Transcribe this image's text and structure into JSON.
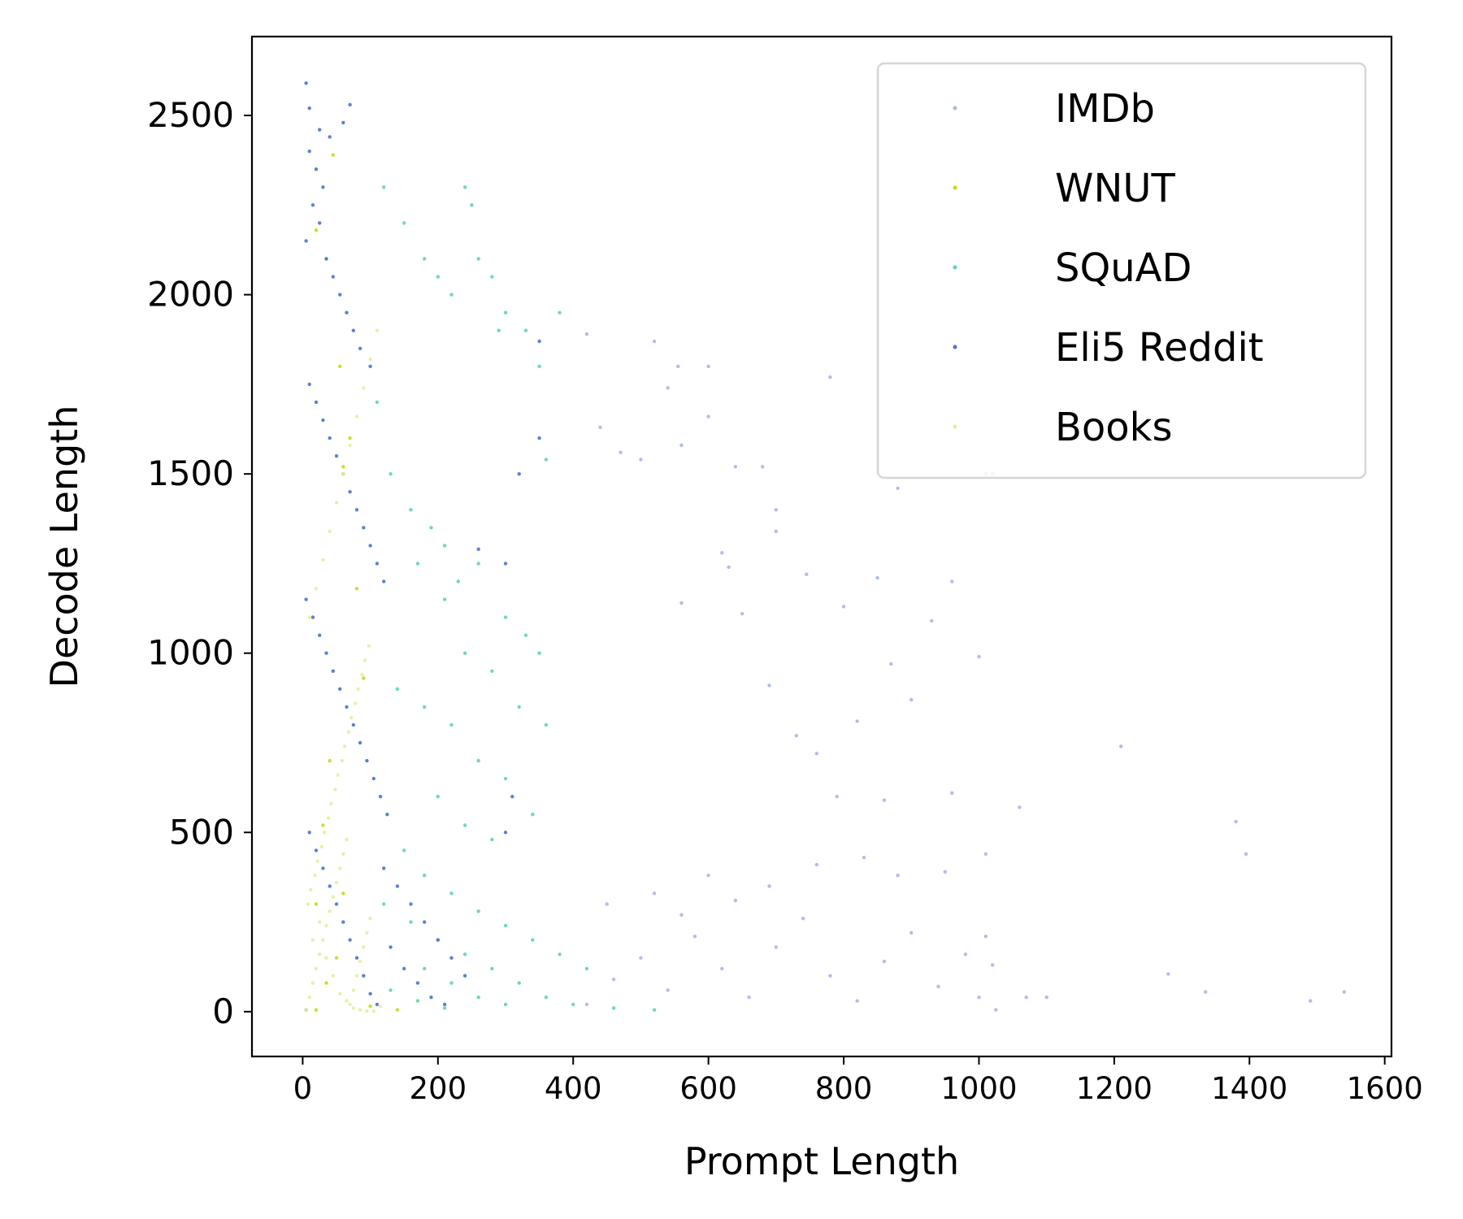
{
  "chart_data": {
    "type": "scatter",
    "title": "",
    "xlabel": "Prompt Length",
    "ylabel": "Decode Length",
    "xlim": [
      -75,
      1610
    ],
    "ylim": [
      -125,
      2720
    ],
    "xticks": [
      0,
      200,
      400,
      600,
      800,
      1000,
      1200,
      1400,
      1600
    ],
    "yticks": [
      0,
      500,
      1000,
      1500,
      2000,
      2500
    ],
    "grid": false,
    "legend": {
      "placement": "top-right"
    },
    "series": [
      {
        "name": "IMDb",
        "color": "#a9b6e6",
        "points": [
          [
            420,
            20
          ],
          [
            460,
            90
          ],
          [
            500,
            150
          ],
          [
            540,
            60
          ],
          [
            580,
            210
          ],
          [
            620,
            120
          ],
          [
            660,
            40
          ],
          [
            700,
            180
          ],
          [
            740,
            260
          ],
          [
            780,
            100
          ],
          [
            820,
            30
          ],
          [
            860,
            140
          ],
          [
            900,
            220
          ],
          [
            940,
            70
          ],
          [
            980,
            160
          ],
          [
            1000,
            40
          ],
          [
            1010,
            210
          ],
          [
            1020,
            130
          ],
          [
            1025,
            5
          ],
          [
            450,
            300
          ],
          [
            520,
            330
          ],
          [
            560,
            270
          ],
          [
            600,
            380
          ],
          [
            640,
            310
          ],
          [
            690,
            350
          ],
          [
            760,
            410
          ],
          [
            830,
            430
          ],
          [
            880,
            380
          ],
          [
            950,
            390
          ],
          [
            1010,
            440
          ],
          [
            1070,
            40
          ],
          [
            1100,
            40
          ],
          [
            1210,
            740
          ],
          [
            1280,
            105
          ],
          [
            1335,
            55
          ],
          [
            1380,
            530
          ],
          [
            1395,
            440
          ],
          [
            1490,
            30
          ],
          [
            1540,
            55
          ],
          [
            420,
            1890
          ],
          [
            440,
            1630
          ],
          [
            470,
            1560
          ],
          [
            500,
            1540
          ],
          [
            520,
            1870
          ],
          [
            555,
            1800
          ],
          [
            600,
            1800
          ],
          [
            640,
            1520
          ],
          [
            680,
            1520
          ],
          [
            700,
            1400
          ],
          [
            745,
            1220
          ],
          [
            780,
            1770
          ],
          [
            850,
            1210
          ],
          [
            870,
            970
          ],
          [
            930,
            1090
          ],
          [
            960,
            1200
          ],
          [
            1010,
            1500
          ],
          [
            1020,
            1500
          ],
          [
            560,
            1140
          ],
          [
            620,
            1280
          ],
          [
            650,
            1110
          ],
          [
            690,
            910
          ],
          [
            730,
            770
          ],
          [
            760,
            720
          ],
          [
            790,
            600
          ],
          [
            860,
            590
          ],
          [
            960,
            610
          ],
          [
            1060,
            570
          ],
          [
            540,
            1740
          ],
          [
            600,
            1660
          ],
          [
            700,
            1340
          ],
          [
            800,
            1130
          ],
          [
            880,
            1460
          ],
          [
            900,
            870
          ],
          [
            820,
            810
          ],
          [
            1000,
            990
          ],
          [
            560,
            1580
          ],
          [
            630,
            1240
          ]
        ]
      },
      {
        "name": "WNUT",
        "color": "#b0e41c",
        "points": [
          [
            20,
            2180
          ],
          [
            35,
            2100
          ],
          [
            45,
            2390
          ],
          [
            55,
            1800
          ],
          [
            60,
            1520
          ],
          [
            70,
            1600
          ],
          [
            80,
            1180
          ],
          [
            90,
            930
          ],
          [
            40,
            700
          ],
          [
            30,
            520
          ],
          [
            60,
            330
          ],
          [
            50,
            150
          ],
          [
            35,
            80
          ],
          [
            20,
            5
          ],
          [
            100,
            15
          ],
          [
            140,
            5
          ],
          [
            20,
            300
          ]
        ]
      },
      {
        "name": "SQuAD",
        "color": "#5ed6a6",
        "points": [
          [
            120,
            2300
          ],
          [
            150,
            2200
          ],
          [
            180,
            2100
          ],
          [
            200,
            2050
          ],
          [
            220,
            2000
          ],
          [
            240,
            2300
          ],
          [
            250,
            2250
          ],
          [
            260,
            2100
          ],
          [
            280,
            2050
          ],
          [
            290,
            1900
          ],
          [
            300,
            1950
          ],
          [
            330,
            1900
          ],
          [
            350,
            1800
          ],
          [
            360,
            1540
          ],
          [
            380,
            1950
          ],
          [
            110,
            1700
          ],
          [
            130,
            1500
          ],
          [
            160,
            1400
          ],
          [
            190,
            1350
          ],
          [
            210,
            1300
          ],
          [
            230,
            1200
          ],
          [
            260,
            1250
          ],
          [
            300,
            1100
          ],
          [
            330,
            1050
          ],
          [
            350,
            1000
          ],
          [
            170,
            1250
          ],
          [
            210,
            1150
          ],
          [
            240,
            1000
          ],
          [
            280,
            950
          ],
          [
            320,
            850
          ],
          [
            360,
            800
          ],
          [
            140,
            900
          ],
          [
            180,
            850
          ],
          [
            220,
            800
          ],
          [
            260,
            700
          ],
          [
            300,
            650
          ],
          [
            340,
            550
          ],
          [
            200,
            600
          ],
          [
            240,
            520
          ],
          [
            280,
            480
          ],
          [
            150,
            450
          ],
          [
            180,
            380
          ],
          [
            220,
            330
          ],
          [
            260,
            280
          ],
          [
            300,
            240
          ],
          [
            340,
            200
          ],
          [
            380,
            160
          ],
          [
            420,
            120
          ],
          [
            120,
            300
          ],
          [
            160,
            250
          ],
          [
            200,
            200
          ],
          [
            240,
            160
          ],
          [
            280,
            120
          ],
          [
            320,
            80
          ],
          [
            360,
            40
          ],
          [
            400,
            20
          ],
          [
            460,
            10
          ],
          [
            520,
            5
          ],
          [
            180,
            120
          ],
          [
            220,
            80
          ],
          [
            260,
            40
          ],
          [
            300,
            20
          ],
          [
            130,
            60
          ],
          [
            170,
            30
          ],
          [
            210,
            10
          ]
        ]
      },
      {
        "name": "Eli5 Reddit",
        "color": "#4a72cf",
        "points": [
          [
            5,
            2590
          ],
          [
            10,
            2520
          ],
          [
            25,
            2460
          ],
          [
            40,
            2440
          ],
          [
            60,
            2480
          ],
          [
            70,
            2530
          ],
          [
            10,
            2400
          ],
          [
            20,
            2350
          ],
          [
            30,
            2300
          ],
          [
            15,
            2250
          ],
          [
            25,
            2200
          ],
          [
            5,
            2150
          ],
          [
            35,
            2100
          ],
          [
            45,
            2050
          ],
          [
            55,
            2000
          ],
          [
            65,
            1950
          ],
          [
            75,
            1900
          ],
          [
            85,
            1850
          ],
          [
            100,
            1800
          ],
          [
            10,
            1750
          ],
          [
            20,
            1700
          ],
          [
            30,
            1650
          ],
          [
            40,
            1600
          ],
          [
            50,
            1550
          ],
          [
            60,
            1500
          ],
          [
            70,
            1450
          ],
          [
            80,
            1400
          ],
          [
            90,
            1350
          ],
          [
            100,
            1300
          ],
          [
            110,
            1250
          ],
          [
            120,
            1200
          ],
          [
            5,
            1150
          ],
          [
            15,
            1100
          ],
          [
            25,
            1050
          ],
          [
            35,
            1000
          ],
          [
            45,
            950
          ],
          [
            55,
            900
          ],
          [
            65,
            850
          ],
          [
            75,
            800
          ],
          [
            85,
            750
          ],
          [
            95,
            700
          ],
          [
            105,
            650
          ],
          [
            115,
            600
          ],
          [
            125,
            550
          ],
          [
            10,
            500
          ],
          [
            20,
            450
          ],
          [
            30,
            400
          ],
          [
            40,
            350
          ],
          [
            50,
            300
          ],
          [
            60,
            250
          ],
          [
            70,
            200
          ],
          [
            80,
            150
          ],
          [
            90,
            100
          ],
          [
            100,
            50
          ],
          [
            110,
            20
          ],
          [
            5,
            5
          ],
          [
            120,
            400
          ],
          [
            140,
            350
          ],
          [
            160,
            300
          ],
          [
            180,
            250
          ],
          [
            200,
            200
          ],
          [
            220,
            150
          ],
          [
            240,
            100
          ],
          [
            130,
            180
          ],
          [
            150,
            120
          ],
          [
            170,
            80
          ],
          [
            190,
            40
          ],
          [
            210,
            20
          ],
          [
            300,
            1250
          ],
          [
            350,
            1600
          ],
          [
            260,
            1290
          ],
          [
            320,
            1500
          ],
          [
            350,
            1870
          ],
          [
            310,
            600
          ],
          [
            300,
            500
          ]
        ]
      },
      {
        "name": "Books",
        "color": "#e2ef9c",
        "points": [
          [
            5,
            5
          ],
          [
            10,
            40
          ],
          [
            15,
            80
          ],
          [
            20,
            120
          ],
          [
            25,
            160
          ],
          [
            30,
            200
          ],
          [
            35,
            240
          ],
          [
            40,
            280
          ],
          [
            45,
            320
          ],
          [
            50,
            360
          ],
          [
            55,
            400
          ],
          [
            60,
            440
          ],
          [
            65,
            480
          ],
          [
            70,
            20
          ],
          [
            75,
            60
          ],
          [
            80,
            100
          ],
          [
            85,
            140
          ],
          [
            90,
            180
          ],
          [
            95,
            220
          ],
          [
            100,
            260
          ],
          [
            8,
            300
          ],
          [
            12,
            340
          ],
          [
            18,
            380
          ],
          [
            22,
            420
          ],
          [
            28,
            460
          ],
          [
            32,
            500
          ],
          [
            38,
            540
          ],
          [
            42,
            580
          ],
          [
            48,
            620
          ],
          [
            52,
            660
          ],
          [
            58,
            700
          ],
          [
            62,
            740
          ],
          [
            68,
            780
          ],
          [
            72,
            820
          ],
          [
            78,
            860
          ],
          [
            82,
            900
          ],
          [
            88,
            940
          ],
          [
            92,
            980
          ],
          [
            98,
            1020
          ],
          [
            10,
            1100
          ],
          [
            20,
            1180
          ],
          [
            30,
            1260
          ],
          [
            40,
            1340
          ],
          [
            50,
            1420
          ],
          [
            60,
            1500
          ],
          [
            70,
            1580
          ],
          [
            80,
            1660
          ],
          [
            90,
            1740
          ],
          [
            100,
            1820
          ],
          [
            110,
            1900
          ],
          [
            15,
            200
          ],
          [
            25,
            250
          ],
          [
            35,
            150
          ],
          [
            45,
            100
          ],
          [
            55,
            50
          ],
          [
            65,
            30
          ],
          [
            75,
            10
          ],
          [
            85,
            5
          ],
          [
            95,
            2
          ],
          [
            105,
            1
          ],
          [
            115,
            15
          ]
        ]
      }
    ]
  }
}
